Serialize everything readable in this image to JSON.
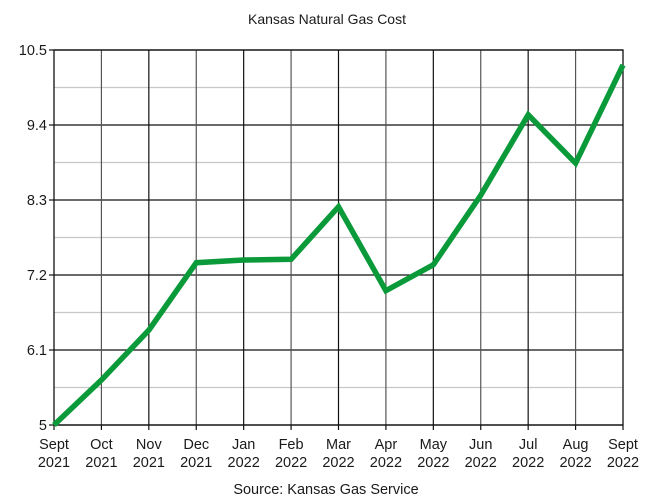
{
  "chart_data": {
    "type": "line",
    "title": "Kansas Natural Gas Cost",
    "xlabel": "",
    "ylabel": "",
    "source": "Source:  Kansas Gas Service",
    "categories": [
      [
        "Sept",
        "2021"
      ],
      [
        "Oct",
        "2021"
      ],
      [
        "Nov",
        "2021"
      ],
      [
        "Dec",
        "2021"
      ],
      [
        "Jan",
        "2022"
      ],
      [
        "Feb",
        "2022"
      ],
      [
        "Mar",
        "2022"
      ],
      [
        "Apr",
        "2022"
      ],
      [
        "May",
        "2022"
      ],
      [
        "Jun",
        "2022"
      ],
      [
        "Jul",
        "2022"
      ],
      [
        "Aug",
        "2022"
      ],
      [
        "Sept",
        "2022"
      ]
    ],
    "series": [
      {
        "name": "Kansas Natural Gas Cost",
        "color": "#0a9a3a",
        "values": [
          5.0,
          5.66,
          6.39,
          7.38,
          7.42,
          7.43,
          8.2,
          6.97,
          7.35,
          8.37,
          9.55,
          8.84,
          10.28
        ]
      }
    ],
    "ylim": [
      5,
      10.5
    ],
    "yticks": [
      "10.5",
      "9.4",
      "8.3",
      "7.2",
      "6.1",
      "5"
    ],
    "ytick_values": [
      10.5,
      9.4,
      8.3,
      7.2,
      6.1,
      5.0
    ],
    "minor_yticks": [
      9.95,
      8.85,
      7.75,
      6.65,
      5.55
    ],
    "grid": true,
    "legend": "none"
  }
}
